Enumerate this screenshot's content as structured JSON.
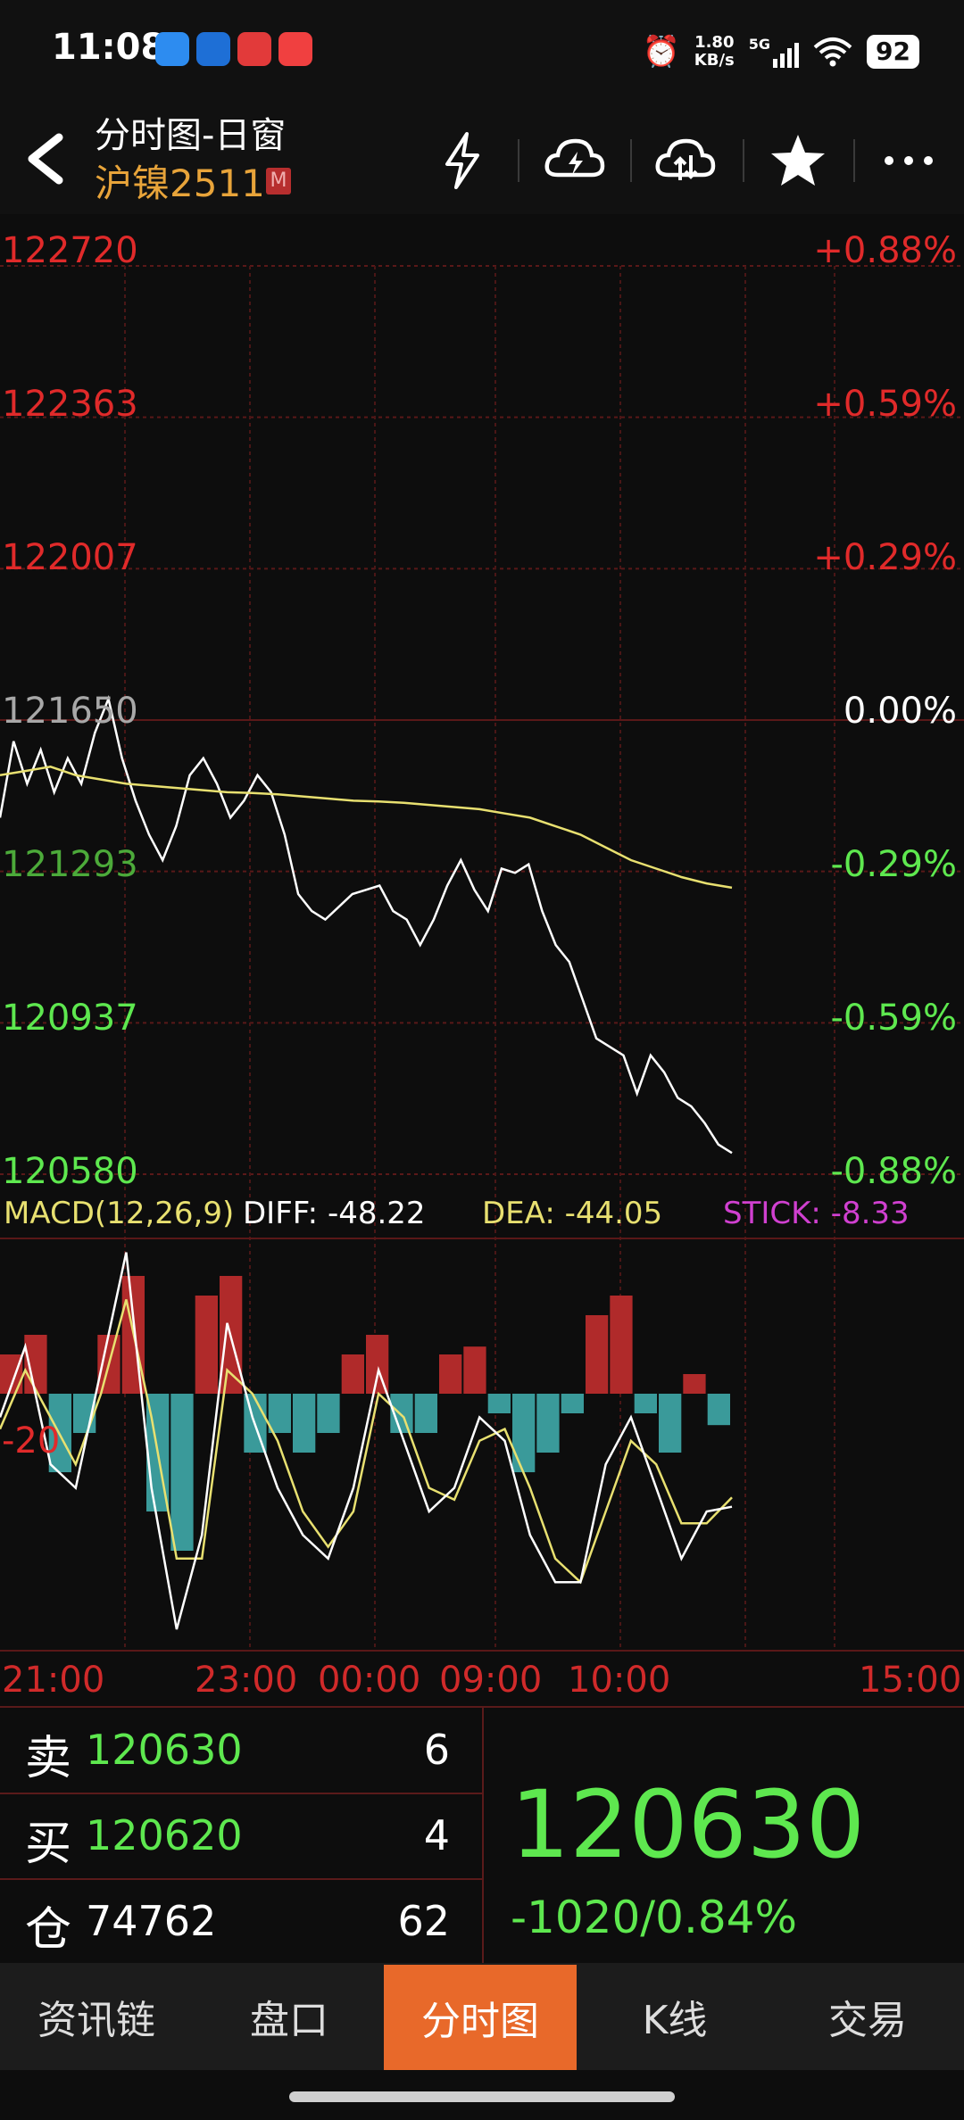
{
  "status_bar": {
    "time": "11:08",
    "net_speed_value": "1.80",
    "net_speed_unit": "KB/s",
    "network": "5G",
    "battery": "92"
  },
  "header": {
    "title": "分时图-日窗",
    "subtitle": "沪镍2511",
    "badge": "M",
    "icons": [
      "back-arrow-icon",
      "lightning-icon",
      "cloud-lightning-icon",
      "cloud-sync-icon",
      "star-icon",
      "more-icon"
    ]
  },
  "chart": {
    "price_levels": [
      "122720",
      "122363",
      "122007",
      "121650",
      "121293",
      "120937",
      "120580"
    ],
    "pct_levels": [
      "+0.88%",
      "+0.59%",
      "+0.29%",
      "0.00%",
      "-0.29%",
      "-0.59%",
      "-0.88%"
    ],
    "macd": {
      "label": "MACD(12,26,9)",
      "diff": "DIFF: -48.22",
      "dea": "DEA: -44.05",
      "stick": "STICK: -8.33",
      "axis_label": "-20"
    },
    "time_labels": [
      "21:00",
      "23:00",
      "00:00",
      "09:00",
      "10:00",
      "15:00"
    ],
    "colors": {
      "up": "#e02a2a",
      "down": "#5ee84f",
      "price_line": "#ffffff",
      "avg_line": "#e8e070",
      "macd_pos": "#b02a2a",
      "macd_neg": "#3a9a9a"
    }
  },
  "chart_data": {
    "type": "line",
    "title": "",
    "xlabel": "",
    "ylabel": "",
    "ylim": [
      120580,
      122720
    ],
    "x_ticks": [
      "21:00",
      "23:00",
      "00:00",
      "09:00",
      "10:00",
      "15:00"
    ],
    "prev_close": 121650,
    "series": [
      {
        "name": "price",
        "values": [
          121420,
          121600,
          121500,
          121580,
          121480,
          121560,
          121500,
          121620,
          121700,
          121560,
          121460,
          121380,
          121320,
          121400,
          121520,
          121560,
          121500,
          121420,
          121460,
          121520,
          121480,
          121380,
          121240,
          121200,
          121180,
          121210,
          121240,
          121250,
          121260,
          121200,
          121180,
          121120,
          121180,
          121260,
          121320,
          121250,
          121200,
          121300,
          121290,
          121310,
          121200,
          121120,
          121080,
          120990,
          120900,
          120880,
          120860,
          120770,
          120860,
          120820,
          120760,
          120740,
          120700,
          120650,
          120630
        ]
      },
      {
        "name": "avg",
        "values": [
          121520,
          121530,
          121540,
          121520,
          121510,
          121500,
          121495,
          121490,
          121485,
          121480,
          121478,
          121475,
          121470,
          121465,
          121460,
          121458,
          121455,
          121450,
          121445,
          121440,
          121430,
          121420,
          121400,
          121380,
          121350,
          121320,
          121300,
          121280,
          121265,
          121255
        ]
      }
    ],
    "macd_series": {
      "diff": [
        -10,
        20,
        -30,
        -40,
        10,
        60,
        -40,
        -100,
        -60,
        30,
        -10,
        -40,
        -60,
        -70,
        -40,
        10,
        -20,
        -50,
        -40,
        -10,
        -20,
        -60,
        -80,
        -80,
        -30,
        -10,
        -40,
        -70,
        -50,
        -48
      ],
      "dea": [
        -15,
        10,
        -10,
        -30,
        0,
        40,
        -10,
        -70,
        -70,
        10,
        0,
        -20,
        -50,
        -65,
        -50,
        0,
        -10,
        -40,
        -45,
        -20,
        -15,
        -40,
        -70,
        -80,
        -50,
        -20,
        -30,
        -55,
        -55,
        -44
      ],
      "stick": [
        10,
        15,
        -20,
        -10,
        15,
        30,
        -30,
        -40,
        25,
        30,
        -15,
        -10,
        -15,
        -10,
        10,
        15,
        -10,
        -10,
        10,
        12,
        -5,
        -20,
        -15,
        -5,
        20,
        25,
        -5,
        -15,
        5,
        -8
      ]
    }
  },
  "order_book": {
    "rows": [
      {
        "key": "卖",
        "price": "120630",
        "volume": "6"
      },
      {
        "key": "买",
        "price": "120620",
        "volume": "4"
      },
      {
        "key": "仓",
        "price": "74762",
        "volume": "62"
      }
    ],
    "last_price": "120630",
    "change": "-1020/0.84%"
  },
  "tabs": [
    {
      "label": "资讯链"
    },
    {
      "label": "盘口"
    },
    {
      "label": "分时图",
      "active": true
    },
    {
      "label": "K线"
    },
    {
      "label": "交易"
    }
  ]
}
